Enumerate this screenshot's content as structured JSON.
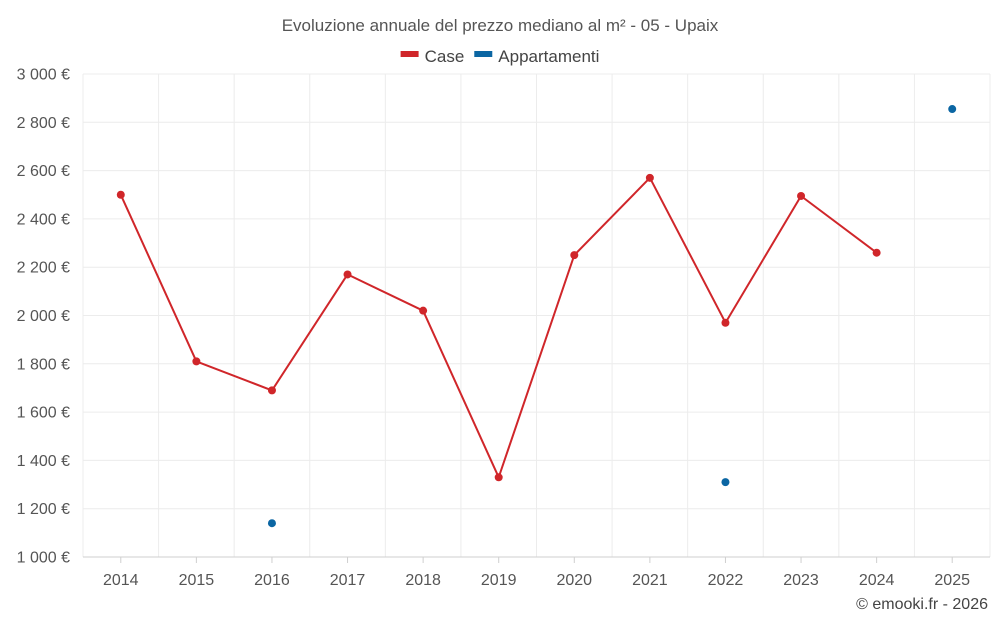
{
  "chart_data": {
    "type": "line",
    "title": "Evoluzione annuale del prezzo mediano al m² - 05 - Upaix",
    "categories": [
      "2014",
      "2015",
      "2016",
      "2017",
      "2018",
      "2019",
      "2020",
      "2021",
      "2022",
      "2023",
      "2024",
      "2025"
    ],
    "series": [
      {
        "name": "Case",
        "color": "#d0262a",
        "values": [
          2500,
          1810,
          1690,
          2170,
          2020,
          1330,
          2250,
          2570,
          1970,
          2495,
          2260,
          null
        ]
      },
      {
        "name": "Appartamenti",
        "color": "#0b66a3",
        "values": [
          null,
          null,
          1140,
          null,
          null,
          null,
          null,
          null,
          1310,
          null,
          null,
          2855
        ]
      }
    ],
    "ylim": [
      1000,
      3000
    ],
    "yticks": [
      1000,
      1200,
      1400,
      1600,
      1800,
      2000,
      2200,
      2400,
      2600,
      2800,
      3000
    ],
    "ytick_labels": [
      "1 000 €",
      "1 200 €",
      "1 400 €",
      "1 600 €",
      "1 800 €",
      "2 000 €",
      "2 200 €",
      "2 400 €",
      "2 600 €",
      "2 800 €",
      "3 000 €"
    ],
    "xlabel": "",
    "ylabel": "",
    "grid": true,
    "legend_position": "top-center"
  },
  "footer": {
    "credit": "© emooki.fr - 2026"
  }
}
